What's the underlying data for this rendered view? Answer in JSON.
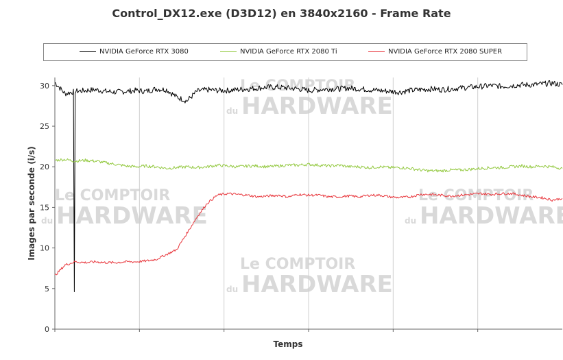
{
  "chart_data": {
    "type": "line",
    "title": "Control_DX12.exe (D3D12) en 3840x2160 - Frame Rate",
    "xlabel": "Temps",
    "ylabel": "Images par seconde (i/s)",
    "ylim": [
      0,
      31
    ],
    "yticks": [
      0,
      5,
      10,
      15,
      20,
      25,
      30
    ],
    "grid": "vertical",
    "legend_position": "top",
    "x_unit": "sample",
    "x": [
      0,
      2,
      4,
      6,
      8,
      10,
      12,
      14,
      16,
      18,
      20,
      22,
      24,
      26,
      28,
      30,
      32,
      34,
      36,
      38,
      40,
      42,
      44,
      46,
      48,
      50,
      52,
      54,
      56,
      58,
      60,
      62,
      64,
      66,
      68,
      70,
      72,
      74,
      76,
      78,
      80,
      82,
      84,
      86,
      88,
      90,
      92,
      94,
      96,
      98,
      100
    ],
    "series": [
      {
        "name": "NVIDIA GeForce RTX 3080",
        "color": "#000000",
        "values": [
          30.4,
          29.0,
          29.3,
          29.4,
          29.5,
          29.3,
          29.2,
          29.3,
          29.4,
          29.3,
          29.6,
          29.5,
          28.6,
          28.1,
          29.3,
          29.5,
          29.4,
          29.4,
          29.5,
          29.6,
          29.7,
          29.8,
          29.8,
          29.7,
          29.6,
          29.4,
          29.5,
          29.6,
          29.6,
          29.7,
          29.6,
          29.5,
          29.4,
          29.3,
          29.2,
          29.4,
          29.5,
          29.6,
          29.5,
          29.6,
          29.7,
          29.8,
          29.9,
          30.0,
          29.9,
          30.0,
          30.1,
          30.1,
          30.2,
          30.3,
          30.1
        ]
      },
      {
        "name": "NVIDIA GeForce RTX 2080 Ti",
        "color": "#92c83e",
        "values": [
          20.8,
          20.9,
          20.7,
          20.8,
          20.7,
          20.5,
          20.3,
          20.1,
          20.0,
          20.1,
          20.0,
          19.8,
          19.9,
          20.0,
          19.9,
          20.0,
          20.2,
          20.1,
          20.0,
          20.1,
          20.1,
          20.0,
          20.1,
          20.2,
          20.2,
          20.3,
          20.2,
          20.1,
          20.2,
          20.0,
          20.0,
          19.9,
          20.0,
          19.9,
          19.9,
          19.8,
          19.6,
          19.5,
          19.5,
          19.6,
          19.6,
          19.7,
          19.8,
          19.9,
          19.9,
          20.0,
          20.1,
          20.0,
          20.1,
          20.0,
          19.8
        ]
      },
      {
        "name": "NVIDIA GeForce RTX 2080 SUPER",
        "color": "#e8343a",
        "values": [
          6.6,
          7.9,
          8.3,
          8.2,
          8.3,
          8.2,
          8.2,
          8.3,
          8.3,
          8.4,
          8.6,
          9.2,
          9.8,
          11.8,
          13.8,
          15.5,
          16.5,
          16.7,
          16.6,
          16.5,
          16.3,
          16.4,
          16.5,
          16.3,
          16.6,
          16.5,
          16.5,
          16.3,
          16.3,
          16.4,
          16.3,
          16.5,
          16.5,
          16.3,
          16.2,
          16.3,
          16.6,
          16.6,
          16.5,
          16.4,
          16.5,
          16.6,
          16.7,
          16.6,
          16.7,
          16.7,
          16.5,
          16.3,
          16.2,
          15.9,
          16.1
        ]
      }
    ],
    "spikes": [
      {
        "series": 0,
        "x": 3.8,
        "value": 4.6
      }
    ]
  },
  "watermark": {
    "line1": "Le COMPTOIR",
    "line2_prefix": "du",
    "line2": "HARDWARE"
  }
}
